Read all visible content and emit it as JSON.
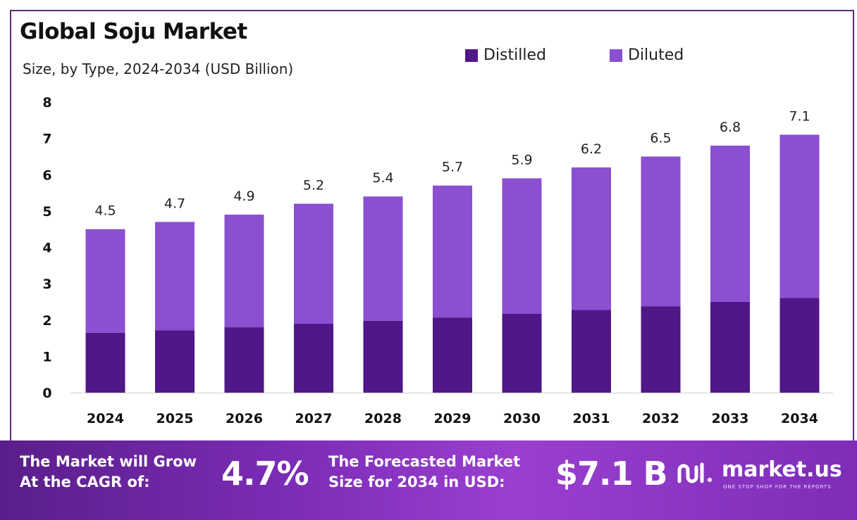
{
  "title": "Global Soju Market",
  "subtitle": "Size, by Type, 2024-2034 (USD Billion)",
  "colors": {
    "distilled": "#4f1787",
    "diluted": "#8b4fd1",
    "footer": "#7d2db8"
  },
  "chart_data": {
    "type": "bar",
    "stacked": true,
    "categories": [
      "2024",
      "2025",
      "2026",
      "2027",
      "2028",
      "2029",
      "2030",
      "2031",
      "2032",
      "2033",
      "2034"
    ],
    "series": [
      {
        "name": "Distilled",
        "values": [
          1.65,
          1.72,
          1.8,
          1.9,
          1.98,
          2.07,
          2.17,
          2.28,
          2.38,
          2.5,
          2.61
        ]
      },
      {
        "name": "Diluted",
        "values": [
          2.85,
          2.98,
          3.1,
          3.3,
          3.42,
          3.63,
          3.73,
          3.92,
          4.12,
          4.3,
          4.49
        ]
      }
    ],
    "totals": [
      "4.5",
      "4.7",
      "4.9",
      "5.2",
      "5.4",
      "5.7",
      "5.9",
      "6.2",
      "6.5",
      "6.8",
      "7.1"
    ],
    "y_ticks": [
      "0",
      "1",
      "2",
      "3",
      "4",
      "5",
      "6",
      "7",
      "8"
    ],
    "ylim": [
      0,
      8
    ],
    "grid": false,
    "legend": "top-right"
  },
  "footer": {
    "cagr_label_line1": "The Market will Grow",
    "cagr_label_line2": "At the CAGR of:",
    "cagr_value": "4.7%",
    "forecast_label_line1": "The Forecasted Market",
    "forecast_label_line2": "Size for 2034 in USD:",
    "forecast_value": "$7.1 B",
    "logo_name": "market.us",
    "logo_tagline": "ONE STOP SHOP FOR THE REPORTS",
    "logo_icon": "market-us-logo-icon"
  }
}
